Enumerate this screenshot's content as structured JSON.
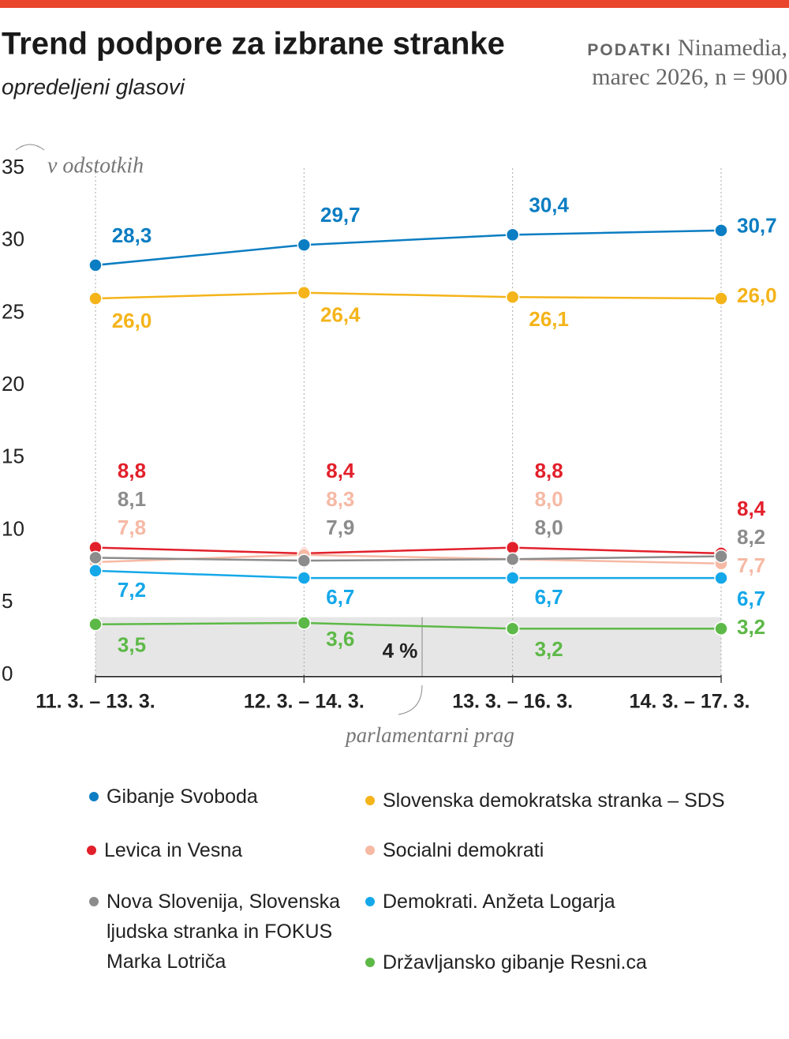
{
  "chart_data": {
    "type": "line",
    "title": "Trend podpore za izbrane stranke",
    "subtitle": "opredeljeni glasovi",
    "source_label": "PODATKI",
    "source": "Ninamedia, marec 2026, n = 900",
    "y_label": "v odstotkih",
    "categories": [
      "11. 3. – 13. 3.",
      "12. 3. – 14. 3.",
      "13. 3. – 16. 3.",
      "14. 3. – 17. 3."
    ],
    "ylim": [
      0,
      35
    ],
    "yticks": [
      0,
      5,
      10,
      15,
      20,
      25,
      30,
      35
    ],
    "threshold": {
      "value": 4,
      "label": "4 %",
      "annotation": "parlamentarni prag"
    },
    "series": [
      {
        "name": "Gibanje Svoboda",
        "color": "#0b7dc2",
        "values": [
          28.3,
          29.7,
          30.4,
          30.7
        ],
        "value_labels": [
          "28,3",
          "29,7",
          "30,4",
          "30,7"
        ]
      },
      {
        "name": "Slovenska demokratska stranka – SDS",
        "color": "#f4b41a",
        "values": [
          26.0,
          26.4,
          26.1,
          26.0
        ],
        "value_labels": [
          "26,0",
          "26,4",
          "26,1",
          "26,0"
        ]
      },
      {
        "name": "Levica in Vesna",
        "color": "#e2202b",
        "values": [
          8.8,
          8.4,
          8.8,
          8.4
        ],
        "value_labels": [
          "8,8",
          "8,4",
          "8,8",
          "8,4"
        ]
      },
      {
        "name": "Socialni demokrati",
        "color": "#f6b9a4",
        "values": [
          7.8,
          8.3,
          8.0,
          7.7
        ],
        "value_labels": [
          "7,8",
          "8,3",
          "8,0",
          "7,7"
        ]
      },
      {
        "name": "Nova Slovenija, Slovenska ljudska stranka in FOKUS Marka Lotriča",
        "color": "#8c8c8c",
        "values": [
          8.1,
          7.9,
          8.0,
          8.2
        ],
        "value_labels": [
          "8,1",
          "7,9",
          "8,0",
          "8,2"
        ]
      },
      {
        "name": "Demokrati. Anžeta Logarja",
        "color": "#15a8e9",
        "values": [
          7.2,
          6.7,
          6.7,
          6.7
        ],
        "value_labels": [
          "7,2",
          "6,7",
          "6,7",
          "6,7"
        ]
      },
      {
        "name": "Državljansko gibanje Resni.ca",
        "color": "#5db947",
        "values": [
          3.5,
          3.6,
          3.2,
          3.2
        ],
        "value_labels": [
          "3,5",
          "3,6",
          "3,2",
          "3,2"
        ]
      }
    ]
  }
}
